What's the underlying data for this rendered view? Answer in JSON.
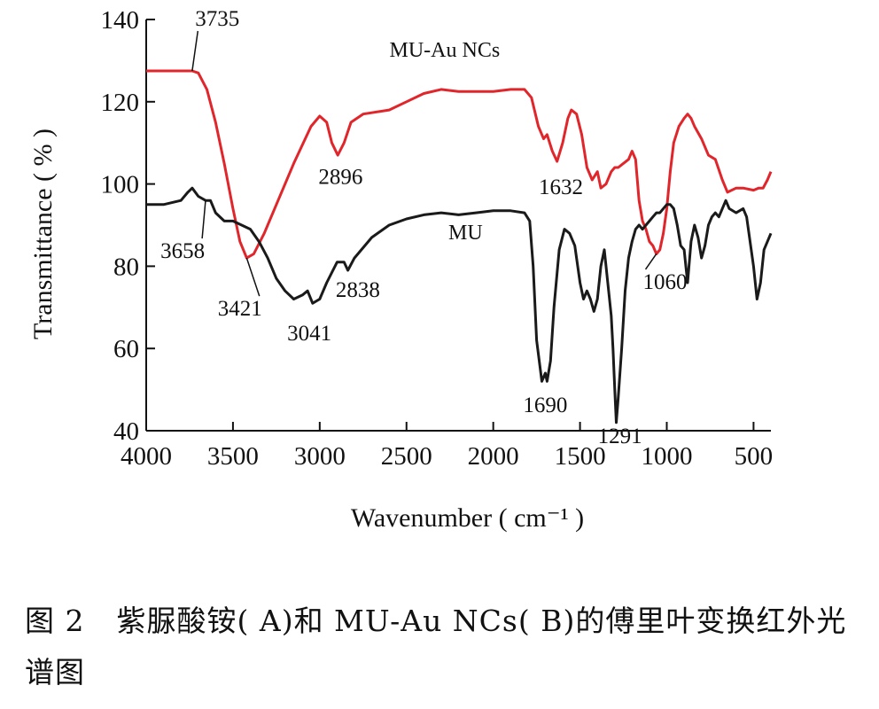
{
  "chart_data": {
    "type": "line",
    "xlabel": "Wavenumber ( cm⁻¹ )",
    "ylabel": "Transmittance ( % )",
    "xlim": [
      4000,
      400
    ],
    "ylim": [
      40,
      140
    ],
    "x_reversed": true,
    "x_ticks": [
      4000,
      3500,
      3000,
      2500,
      2000,
      1500,
      1000,
      500
    ],
    "y_ticks": [
      40,
      60,
      80,
      100,
      120,
      140
    ],
    "grid": false,
    "series": [
      {
        "name": "MU-Au NCs",
        "color": "#e0262b",
        "points": [
          [
            4000,
            127.5
          ],
          [
            3850,
            127.5
          ],
          [
            3735,
            127.5
          ],
          [
            3700,
            127
          ],
          [
            3650,
            123
          ],
          [
            3600,
            115
          ],
          [
            3550,
            105
          ],
          [
            3500,
            94
          ],
          [
            3460,
            86
          ],
          [
            3421,
            82
          ],
          [
            3380,
            83
          ],
          [
            3320,
            88
          ],
          [
            3250,
            95
          ],
          [
            3150,
            105
          ],
          [
            3050,
            114
          ],
          [
            3000,
            116.5
          ],
          [
            2960,
            115
          ],
          [
            2930,
            110
          ],
          [
            2896,
            107
          ],
          [
            2860,
            110
          ],
          [
            2820,
            115
          ],
          [
            2750,
            117
          ],
          [
            2600,
            118
          ],
          [
            2500,
            120
          ],
          [
            2400,
            122
          ],
          [
            2300,
            123
          ],
          [
            2200,
            122.5
          ],
          [
            2100,
            122.5
          ],
          [
            2000,
            122.5
          ],
          [
            1900,
            123
          ],
          [
            1820,
            123
          ],
          [
            1780,
            121
          ],
          [
            1740,
            114
          ],
          [
            1710,
            111
          ],
          [
            1690,
            112
          ],
          [
            1660,
            108
          ],
          [
            1632,
            105.5
          ],
          [
            1600,
            110
          ],
          [
            1570,
            116
          ],
          [
            1550,
            118
          ],
          [
            1520,
            117
          ],
          [
            1490,
            112
          ],
          [
            1460,
            104
          ],
          [
            1430,
            101
          ],
          [
            1400,
            103
          ],
          [
            1380,
            99
          ],
          [
            1350,
            100
          ],
          [
            1320,
            103
          ],
          [
            1300,
            104
          ],
          [
            1280,
            104
          ],
          [
            1250,
            105
          ],
          [
            1220,
            106
          ],
          [
            1200,
            108
          ],
          [
            1180,
            106
          ],
          [
            1160,
            96
          ],
          [
            1140,
            91
          ],
          [
            1120,
            89
          ],
          [
            1100,
            86
          ],
          [
            1080,
            85
          ],
          [
            1060,
            83
          ],
          [
            1040,
            84
          ],
          [
            1020,
            88
          ],
          [
            1000,
            94
          ],
          [
            980,
            103
          ],
          [
            960,
            110
          ],
          [
            930,
            114
          ],
          [
            900,
            116
          ],
          [
            880,
            117
          ],
          [
            860,
            116
          ],
          [
            840,
            114
          ],
          [
            800,
            111
          ],
          [
            760,
            107
          ],
          [
            720,
            106
          ],
          [
            680,
            101
          ],
          [
            650,
            98
          ],
          [
            600,
            99
          ],
          [
            560,
            99
          ],
          [
            500,
            98.5
          ],
          [
            470,
            99
          ],
          [
            445,
            99
          ],
          [
            420,
            101
          ],
          [
            400,
            103
          ]
        ]
      },
      {
        "name": "MU",
        "color": "#1a1a1a",
        "points": [
          [
            4000,
            95
          ],
          [
            3900,
            95
          ],
          [
            3800,
            96
          ],
          [
            3760,
            98
          ],
          [
            3735,
            99
          ],
          [
            3700,
            97
          ],
          [
            3658,
            96
          ],
          [
            3630,
            96
          ],
          [
            3600,
            93
          ],
          [
            3550,
            91
          ],
          [
            3500,
            91
          ],
          [
            3450,
            90
          ],
          [
            3400,
            89
          ],
          [
            3350,
            86
          ],
          [
            3300,
            82
          ],
          [
            3250,
            77
          ],
          [
            3200,
            74
          ],
          [
            3150,
            72
          ],
          [
            3100,
            73
          ],
          [
            3070,
            74
          ],
          [
            3041,
            71
          ],
          [
            3000,
            72
          ],
          [
            2960,
            76
          ],
          [
            2900,
            81
          ],
          [
            2860,
            81
          ],
          [
            2838,
            79
          ],
          [
            2800,
            82
          ],
          [
            2700,
            87
          ],
          [
            2600,
            90
          ],
          [
            2500,
            91.5
          ],
          [
            2400,
            92.5
          ],
          [
            2300,
            93
          ],
          [
            2200,
            92.5
          ],
          [
            2100,
            93
          ],
          [
            2000,
            93.5
          ],
          [
            1900,
            93.5
          ],
          [
            1820,
            93
          ],
          [
            1790,
            91
          ],
          [
            1770,
            80
          ],
          [
            1750,
            62
          ],
          [
            1720,
            52
          ],
          [
            1700,
            54
          ],
          [
            1690,
            52
          ],
          [
            1670,
            57
          ],
          [
            1650,
            70
          ],
          [
            1620,
            84
          ],
          [
            1590,
            89
          ],
          [
            1560,
            88
          ],
          [
            1530,
            85
          ],
          [
            1500,
            76
          ],
          [
            1480,
            72
          ],
          [
            1460,
            74
          ],
          [
            1440,
            72
          ],
          [
            1420,
            69
          ],
          [
            1400,
            72
          ],
          [
            1380,
            80
          ],
          [
            1360,
            84
          ],
          [
            1340,
            76
          ],
          [
            1320,
            68
          ],
          [
            1310,
            60
          ],
          [
            1300,
            50
          ],
          [
            1291,
            42
          ],
          [
            1280,
            48
          ],
          [
            1260,
            60
          ],
          [
            1240,
            74
          ],
          [
            1220,
            82
          ],
          [
            1200,
            86
          ],
          [
            1180,
            89
          ],
          [
            1160,
            90
          ],
          [
            1140,
            89
          ],
          [
            1120,
            90
          ],
          [
            1100,
            91
          ],
          [
            1080,
            92
          ],
          [
            1060,
            93
          ],
          [
            1040,
            93
          ],
          [
            1020,
            94
          ],
          [
            1000,
            95
          ],
          [
            980,
            95
          ],
          [
            960,
            94
          ],
          [
            940,
            90
          ],
          [
            920,
            85
          ],
          [
            900,
            84
          ],
          [
            890,
            80
          ],
          [
            880,
            76
          ],
          [
            860,
            86
          ],
          [
            840,
            90
          ],
          [
            820,
            87
          ],
          [
            800,
            82
          ],
          [
            780,
            85
          ],
          [
            760,
            90
          ],
          [
            740,
            92
          ],
          [
            720,
            93
          ],
          [
            700,
            92
          ],
          [
            680,
            94
          ],
          [
            660,
            96
          ],
          [
            640,
            94
          ],
          [
            600,
            93
          ],
          [
            560,
            94
          ],
          [
            540,
            92
          ],
          [
            520,
            86
          ],
          [
            500,
            80
          ],
          [
            480,
            72
          ],
          [
            460,
            76
          ],
          [
            440,
            84
          ],
          [
            420,
            86
          ],
          [
            400,
            88
          ]
        ]
      }
    ],
    "annotations": [
      {
        "text": "3735",
        "target": [
          3735,
          127.5
        ]
      },
      {
        "text": "3658",
        "target": [
          3658,
          96
        ]
      },
      {
        "text": "3421",
        "target": [
          3421,
          82
        ]
      },
      {
        "text": "2896",
        "target": [
          2896,
          107
        ]
      },
      {
        "text": "3041",
        "target": [
          3041,
          71
        ]
      },
      {
        "text": "2838",
        "target": [
          2838,
          79
        ]
      },
      {
        "text": "1632",
        "target": [
          1632,
          105.5
        ]
      },
      {
        "text": "1690",
        "target": [
          1690,
          52
        ]
      },
      {
        "text": "1291",
        "target": [
          1291,
          42
        ]
      },
      {
        "text": "1060",
        "target": [
          1060,
          83
        ]
      }
    ]
  },
  "caption": {
    "figure_number": "图 2",
    "text": "紫脲酸铵( A)和 MU-Au NCs( B)的傅里叶变换红外光谱图"
  }
}
